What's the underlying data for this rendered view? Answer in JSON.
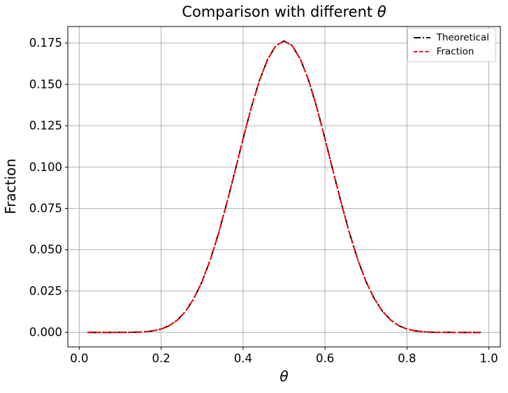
{
  "figure": {
    "title_text": "Comparison with different ",
    "title_symbol": "θ",
    "xlabel": "θ",
    "ylabel": "Fraction",
    "background": "#ffffff"
  },
  "legend": {
    "position": "upper right",
    "entries": [
      {
        "label": "Theoretical",
        "color": "#000000",
        "linestyle": "dashdot"
      },
      {
        "label": "Fraction",
        "color": "#ff0000",
        "linestyle": "dashed"
      }
    ]
  },
  "chart_data": {
    "type": "line",
    "title": "Comparison with different θ",
    "xlabel": "θ",
    "ylabel": "Fraction",
    "xlim": [
      -0.028,
      1.028
    ],
    "ylim": [
      -0.0088,
      0.185
    ],
    "grid": true,
    "grid_color": "#b0b0b0",
    "spine_color": "#000000",
    "legend_position": "upper right",
    "xticks": {
      "values": [
        0.0,
        0.2,
        0.4,
        0.6,
        0.8,
        1.0
      ],
      "labels": [
        "0.0",
        "0.2",
        "0.4",
        "0.6",
        "0.8",
        "1.0"
      ]
    },
    "yticks": {
      "values": [
        0.0,
        0.025,
        0.05,
        0.075,
        0.1,
        0.125,
        0.15,
        0.175
      ],
      "labels": [
        "0.000",
        "0.025",
        "0.050",
        "0.075",
        "0.100",
        "0.125",
        "0.150",
        "0.175"
      ]
    },
    "x": [
      0.02,
      0.04,
      0.06,
      0.08,
      0.1,
      0.12,
      0.14,
      0.16,
      0.18,
      0.2,
      0.22,
      0.24,
      0.26,
      0.28,
      0.3,
      0.32,
      0.34,
      0.36,
      0.38,
      0.4,
      0.42,
      0.44,
      0.46,
      0.48,
      0.5,
      0.52,
      0.54,
      0.56,
      0.58,
      0.6,
      0.62,
      0.64,
      0.66,
      0.68,
      0.7,
      0.72,
      0.74,
      0.76,
      0.78,
      0.8,
      0.82,
      0.84,
      0.86,
      0.88,
      0.9,
      0.92,
      0.94,
      0.96,
      0.98
    ],
    "series": [
      {
        "name": "Theoretical",
        "color": "#000000",
        "linestyle": "dashdot",
        "values": [
          0.0,
          0.0,
          0.0,
          0.0,
          1e-05,
          3e-05,
          0.00012,
          0.00036,
          0.00091,
          0.00203,
          0.00409,
          0.00753,
          0.01285,
          0.02049,
          0.03082,
          0.04397,
          0.05982,
          0.07789,
          0.09735,
          0.11715,
          0.13598,
          0.15242,
          0.16525,
          0.17341,
          0.1762,
          0.17341,
          0.16525,
          0.15242,
          0.13598,
          0.11715,
          0.09735,
          0.07789,
          0.05982,
          0.04397,
          0.03082,
          0.02049,
          0.01285,
          0.00753,
          0.00409,
          0.00203,
          0.00091,
          0.00036,
          0.00012,
          3e-05,
          1e-05,
          0.0,
          0.0,
          0.0,
          0.0
        ]
      },
      {
        "name": "Fraction",
        "color": "#ff0000",
        "linestyle": "dashed",
        "values": [
          0.0,
          0.0,
          0.0,
          0.0,
          1e-05,
          3e-05,
          0.00012,
          0.00036,
          0.00091,
          0.00203,
          0.00409,
          0.00753,
          0.01285,
          0.02049,
          0.03082,
          0.04397,
          0.05982,
          0.07789,
          0.09735,
          0.11715,
          0.13598,
          0.15242,
          0.16525,
          0.17341,
          0.1762,
          0.17341,
          0.16525,
          0.15242,
          0.13598,
          0.11715,
          0.09735,
          0.07789,
          0.05982,
          0.04397,
          0.03082,
          0.02049,
          0.01285,
          0.00753,
          0.00409,
          0.00203,
          0.00091,
          0.00036,
          0.00012,
          3e-05,
          1e-05,
          0.0,
          0.0,
          0.0,
          0.0
        ]
      }
    ]
  }
}
